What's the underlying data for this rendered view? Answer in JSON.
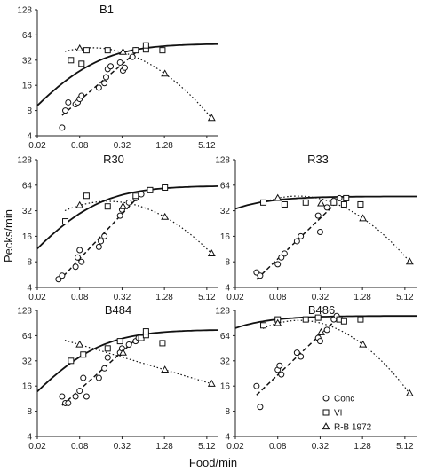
{
  "figure": {
    "ylabel": "Pecks/min",
    "xlabel": "Food/min",
    "legend": [
      {
        "marker": "circle",
        "label": "Conc"
      },
      {
        "marker": "square",
        "label": "VI"
      },
      {
        "marker": "triangle",
        "label": "R-B 1972"
      }
    ]
  },
  "chart_data": [
    {
      "type": "scatter",
      "title": "B1",
      "xscale": "log2",
      "yscale": "log2",
      "xticks": [
        "0.02",
        "0.08",
        "0.32",
        "1.28",
        "5.12"
      ],
      "yticks": [
        "4",
        "8",
        "16",
        "32",
        "64",
        "128"
      ],
      "xlim": [
        0.02,
        7.5
      ],
      "ylim": [
        4,
        128
      ],
      "series": [
        {
          "name": "Conc",
          "marker": "circle",
          "points": [
            [
              0.045,
              5
            ],
            [
              0.05,
              8
            ],
            [
              0.055,
              10
            ],
            [
              0.07,
              9.5
            ],
            [
              0.075,
              10
            ],
            [
              0.08,
              11
            ],
            [
              0.085,
              12
            ],
            [
              0.15,
              15
            ],
            [
              0.18,
              17
            ],
            [
              0.19,
              20
            ],
            [
              0.2,
              25
            ],
            [
              0.22,
              27
            ],
            [
              0.3,
              30
            ],
            [
              0.33,
              24
            ],
            [
              0.35,
              26
            ],
            [
              0.45,
              35
            ],
            [
              0.5,
              42
            ]
          ]
        },
        {
          "name": "VI",
          "marker": "square",
          "points": [
            [
              0.06,
              32
            ],
            [
              0.085,
              29
            ],
            [
              0.1,
              42
            ],
            [
              0.2,
              42
            ],
            [
              0.5,
              42
            ],
            [
              0.7,
              43
            ],
            [
              0.7,
              48
            ],
            [
              1.2,
              42
            ]
          ]
        },
        {
          "name": "R-B 1972",
          "marker": "triangle",
          "points": [
            [
              0.08,
              44
            ],
            [
              0.33,
              40
            ],
            [
              1.3,
              22
            ],
            [
              6,
              6.5
            ]
          ]
        }
      ],
      "fits": {
        "vi_solid": "rising",
        "conc_dashed": "linear",
        "rb_dotted": "falling"
      }
    },
    {
      "type": "scatter",
      "title": "R30",
      "xscale": "log2",
      "yscale": "log2",
      "xticks": [
        "0.02",
        "0.08",
        "0.32",
        "1.28",
        "5.12"
      ],
      "yticks": [
        "4",
        "8",
        "16",
        "32",
        "64",
        "128"
      ],
      "xlim": [
        0.02,
        7.5
      ],
      "ylim": [
        4,
        128
      ],
      "series": [
        {
          "name": "Conc",
          "marker": "circle",
          "points": [
            [
              0.04,
              5
            ],
            [
              0.045,
              5.5
            ],
            [
              0.07,
              7
            ],
            [
              0.075,
              9
            ],
            [
              0.08,
              11
            ],
            [
              0.085,
              8
            ],
            [
              0.15,
              12
            ],
            [
              0.16,
              14
            ],
            [
              0.18,
              16
            ],
            [
              0.3,
              28
            ],
            [
              0.32,
              33
            ],
            [
              0.4,
              40
            ],
            [
              0.5,
              45
            ],
            [
              0.6,
              50
            ]
          ]
        },
        {
          "name": "VI",
          "marker": "square",
          "points": [
            [
              0.05,
              24
            ],
            [
              0.1,
              48
            ],
            [
              0.2,
              36
            ],
            [
              0.5,
              48
            ],
            [
              0.8,
              56
            ],
            [
              1.3,
              60
            ]
          ]
        },
        {
          "name": "R-B 1972",
          "marker": "triangle",
          "points": [
            [
              0.08,
              37
            ],
            [
              0.33,
              36
            ],
            [
              1.3,
              27
            ],
            [
              6,
              10
            ]
          ]
        }
      ],
      "fits": {
        "vi_solid": "rising",
        "conc_dashed": "linear",
        "rb_dotted": "falling"
      }
    },
    {
      "type": "scatter",
      "title": "R33",
      "xscale": "log2",
      "yscale": "log2",
      "xticks": [
        "0.02",
        "0.08",
        "0.32",
        "1.28",
        "5.12"
      ],
      "yticks": [
        "4",
        "8",
        "16",
        "32",
        "64",
        "128"
      ],
      "xlim": [
        0.02,
        7.5
      ],
      "ylim": [
        4,
        128
      ],
      "series": [
        {
          "name": "Conc",
          "marker": "circle",
          "points": [
            [
              0.04,
              6
            ],
            [
              0.045,
              5.5
            ],
            [
              0.08,
              7.5
            ],
            [
              0.09,
              9
            ],
            [
              0.1,
              10
            ],
            [
              0.15,
              14
            ],
            [
              0.17,
              16
            ],
            [
              0.3,
              28
            ],
            [
              0.32,
              18
            ],
            [
              0.4,
              35
            ],
            [
              0.5,
              42
            ],
            [
              0.6,
              45
            ]
          ]
        },
        {
          "name": "VI",
          "marker": "square",
          "points": [
            [
              0.05,
              40
            ],
            [
              0.1,
              38
            ],
            [
              0.2,
              40
            ],
            [
              0.5,
              40
            ],
            [
              0.7,
              38
            ],
            [
              0.75,
              45
            ],
            [
              1.2,
              38
            ]
          ]
        },
        {
          "name": "R-B 1972",
          "marker": "triangle",
          "points": [
            [
              0.08,
              45
            ],
            [
              0.33,
              39
            ],
            [
              1.3,
              26
            ],
            [
              6,
              8
            ]
          ]
        }
      ],
      "fits": {
        "vi_solid": "flat",
        "conc_dashed": "linear",
        "rb_dotted": "falling"
      }
    },
    {
      "type": "scatter",
      "title": "B484",
      "xscale": "log2",
      "yscale": "log2",
      "xticks": [
        "0.02",
        "0.08",
        "0.32",
        "1.28",
        "5.12"
      ],
      "yticks": [
        "4",
        "8",
        "16",
        "32",
        "64",
        "128"
      ],
      "xlim": [
        0.02,
        7.5
      ],
      "ylim": [
        4,
        128
      ],
      "series": [
        {
          "name": "Conc",
          "marker": "circle",
          "points": [
            [
              0.045,
              12
            ],
            [
              0.05,
              10
            ],
            [
              0.055,
              10
            ],
            [
              0.07,
              12
            ],
            [
              0.08,
              14
            ],
            [
              0.09,
              20
            ],
            [
              0.1,
              12
            ],
            [
              0.15,
              20
            ],
            [
              0.18,
              26
            ],
            [
              0.2,
              35
            ],
            [
              0.3,
              40
            ],
            [
              0.32,
              45
            ],
            [
              0.4,
              50
            ],
            [
              0.5,
              55
            ],
            [
              0.55,
              60
            ]
          ]
        },
        {
          "name": "VI",
          "marker": "square",
          "points": [
            [
              0.06,
              32
            ],
            [
              0.09,
              38
            ],
            [
              0.2,
              45
            ],
            [
              0.3,
              55
            ],
            [
              0.6,
              60
            ],
            [
              0.7,
              65
            ],
            [
              0.7,
              72
            ],
            [
              1.2,
              52
            ]
          ]
        },
        {
          "name": "R-B 1972",
          "marker": "triangle",
          "points": [
            [
              0.08,
              50
            ],
            [
              0.33,
              40
            ],
            [
              1.3,
              25
            ],
            [
              6,
              17
            ]
          ]
        }
      ],
      "fits": {
        "vi_solid": "rising",
        "conc_dashed": "linear",
        "rb_dotted": "falling"
      }
    },
    {
      "type": "scatter",
      "title": "B486",
      "xscale": "log2",
      "yscale": "log2",
      "xticks": [
        "0.02",
        "0.08",
        "0.32",
        "1.28",
        "5.12"
      ],
      "yticks": [
        "4",
        "8",
        "16",
        "32",
        "64",
        "128"
      ],
      "xlim": [
        0.02,
        7.5
      ],
      "ylim": [
        4,
        128
      ],
      "series": [
        {
          "name": "Conc",
          "marker": "circle",
          "points": [
            [
              0.04,
              16
            ],
            [
              0.045,
              9
            ],
            [
              0.08,
              25
            ],
            [
              0.085,
              28
            ],
            [
              0.09,
              22
            ],
            [
              0.15,
              40
            ],
            [
              0.17,
              36
            ],
            [
              0.3,
              60
            ],
            [
              0.32,
              55
            ],
            [
              0.4,
              75
            ],
            [
              0.5,
              100
            ],
            [
              0.55,
              110
            ]
          ]
        },
        {
          "name": "VI",
          "marker": "square",
          "points": [
            [
              0.05,
              85
            ],
            [
              0.08,
              100
            ],
            [
              0.2,
              100
            ],
            [
              0.3,
              105
            ],
            [
              0.6,
              100
            ],
            [
              0.7,
              95
            ],
            [
              1.2,
              100
            ]
          ]
        },
        {
          "name": "R-B 1972",
          "marker": "triangle",
          "points": [
            [
              0.08,
              90
            ],
            [
              0.33,
              70
            ],
            [
              1.3,
              50
            ],
            [
              6,
              13
            ]
          ]
        }
      ],
      "fits": {
        "vi_solid": "flat",
        "conc_dashed": "linear",
        "rb_dotted": "falling"
      }
    }
  ]
}
